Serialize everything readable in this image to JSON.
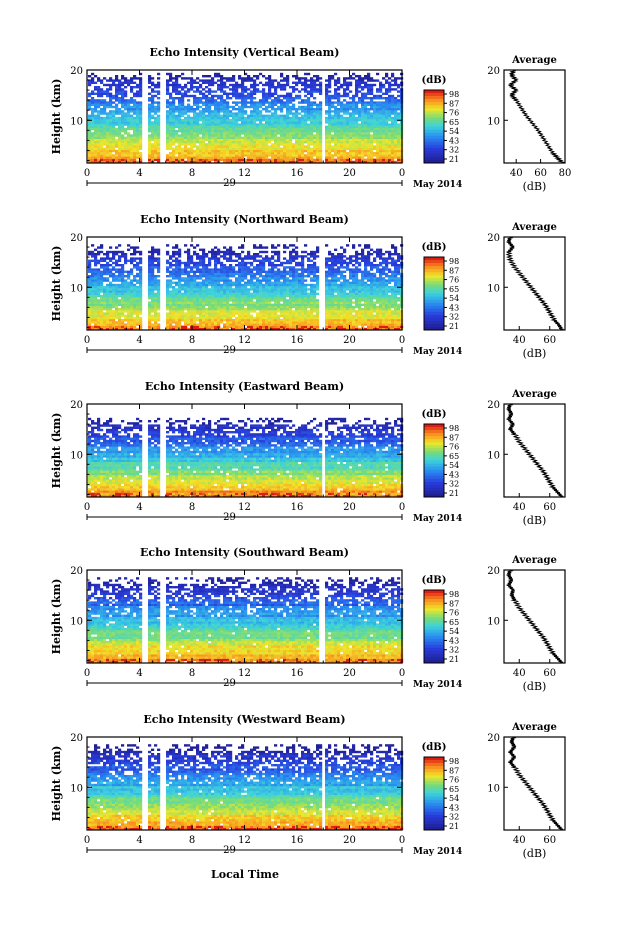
{
  "figure": {
    "date_label": "May 2014",
    "xlabel_bottom": "Local Time",
    "ylabel": "Height (km)",
    "x_ticks": [
      "0",
      "4",
      "8",
      "12",
      "16",
      "20",
      "0"
    ],
    "day_label": "29",
    "y_ticks": [
      "20",
      "10"
    ],
    "colorbar_unit": "(dB)",
    "avg_title": "Average",
    "avg_xlabel": "(dB)",
    "colors": {
      "high": "#d7191c",
      "mid": "#ffe119",
      "low": "#2020c0",
      "gap": "#ffffff"
    }
  },
  "chart_data": [
    {
      "type": "heatmap",
      "title": "Echo Intensity (Vertical Beam)",
      "x_range_hours": [
        0,
        24
      ],
      "y_range_km": [
        1.5,
        20
      ],
      "colorbar_ticks": [
        "98",
        "87",
        "76",
        "65",
        "54",
        "43",
        "32",
        "21"
      ],
      "data_gaps_hours": [
        [
          4.0,
          4.5
        ],
        [
          5.4,
          5.8
        ],
        [
          17.7,
          18.0
        ]
      ],
      "average_profile": {
        "x_ticks": [
          "40",
          "60",
          "80"
        ],
        "x_range": [
          30,
          80
        ],
        "points": [
          [
            78,
            1.5
          ],
          [
            74,
            2.5
          ],
          [
            70,
            3.5
          ],
          [
            66,
            5
          ],
          [
            62,
            6.5
          ],
          [
            58,
            8
          ],
          [
            53,
            9.5
          ],
          [
            48,
            11
          ],
          [
            44,
            12.5
          ],
          [
            40,
            14
          ],
          [
            36,
            15
          ],
          [
            40,
            16
          ],
          [
            35,
            17
          ],
          [
            40,
            18
          ],
          [
            36,
            19
          ],
          [
            38,
            20
          ]
        ]
      }
    },
    {
      "type": "heatmap",
      "title": "Echo Intensity (Northward Beam)",
      "x_range_hours": [
        0,
        24
      ],
      "y_range_km": [
        1.5,
        20
      ],
      "colorbar_ticks": [
        "98",
        "87",
        "76",
        "65",
        "54",
        "43",
        "32",
        "21"
      ],
      "data_gaps_hours": [
        [
          4.0,
          4.5
        ],
        [
          5.4,
          5.8
        ],
        [
          17.6,
          18.0
        ]
      ],
      "average_profile": {
        "x_ticks": [
          "40",
          "60"
        ],
        "x_range": [
          30,
          70
        ],
        "points": [
          [
            68,
            1.5
          ],
          [
            66,
            2.5
          ],
          [
            63,
            3.5
          ],
          [
            60,
            5
          ],
          [
            57,
            6.5
          ],
          [
            53,
            8
          ],
          [
            49,
            9.5
          ],
          [
            45,
            11
          ],
          [
            41,
            12.5
          ],
          [
            37,
            14
          ],
          [
            34,
            15.5
          ],
          [
            33,
            17
          ],
          [
            36,
            18
          ],
          [
            33,
            19
          ],
          [
            34,
            20
          ]
        ]
      }
    },
    {
      "type": "heatmap",
      "title": "Echo Intensity (Eastward Beam)",
      "x_range_hours": [
        0,
        24
      ],
      "y_range_km": [
        1.5,
        20
      ],
      "colorbar_ticks": [
        "98",
        "87",
        "76",
        "65",
        "54",
        "43",
        "32",
        "21"
      ],
      "data_gaps_hours": [
        [
          4.0,
          4.5
        ],
        [
          5.4,
          5.8
        ],
        [
          17.7,
          18.0
        ]
      ],
      "average_profile": {
        "x_ticks": [
          "40",
          "60"
        ],
        "x_range": [
          30,
          70
        ],
        "points": [
          [
            68,
            1.5
          ],
          [
            65,
            2.5
          ],
          [
            62,
            3.5
          ],
          [
            59,
            5
          ],
          [
            56,
            6.5
          ],
          [
            52,
            8
          ],
          [
            48,
            9.5
          ],
          [
            44,
            11
          ],
          [
            40,
            12.5
          ],
          [
            37,
            14
          ],
          [
            34,
            15
          ],
          [
            36,
            16
          ],
          [
            33,
            17
          ],
          [
            35,
            18
          ],
          [
            33,
            19
          ],
          [
            34,
            20
          ]
        ]
      }
    },
    {
      "type": "heatmap",
      "title": "Echo Intensity (Southward Beam)",
      "x_range_hours": [
        0,
        24
      ],
      "y_range_km": [
        1.5,
        20
      ],
      "colorbar_ticks": [
        "98",
        "87",
        "76",
        "65",
        "54",
        "43",
        "32",
        "21"
      ],
      "data_gaps_hours": [
        [
          4.0,
          4.5
        ],
        [
          5.4,
          5.8
        ],
        [
          17.6,
          18.0
        ]
      ],
      "average_profile": {
        "x_ticks": [
          "40",
          "60"
        ],
        "x_range": [
          30,
          70
        ],
        "points": [
          [
            68,
            1.5
          ],
          [
            65,
            2.5
          ],
          [
            62,
            3.5
          ],
          [
            59,
            5
          ],
          [
            56,
            6.5
          ],
          [
            52,
            8
          ],
          [
            48,
            9.5
          ],
          [
            44,
            11
          ],
          [
            40,
            12.5
          ],
          [
            37,
            14
          ],
          [
            35,
            15
          ],
          [
            36,
            16
          ],
          [
            33,
            17
          ],
          [
            35,
            18
          ],
          [
            33,
            19
          ],
          [
            34,
            20
          ]
        ]
      }
    },
    {
      "type": "heatmap",
      "title": "Echo Intensity (Westward Beam)",
      "x_range_hours": [
        0,
        24
      ],
      "y_range_km": [
        1.5,
        20
      ],
      "colorbar_ticks": [
        "98",
        "87",
        "76",
        "65",
        "54",
        "43",
        "32",
        "21"
      ],
      "data_gaps_hours": [
        [
          4.0,
          4.5
        ],
        [
          5.4,
          5.8
        ],
        [
          17.7,
          18.0
        ]
      ],
      "average_profile": {
        "x_ticks": [
          "40",
          "60"
        ],
        "x_range": [
          30,
          70
        ],
        "points": [
          [
            68,
            1.5
          ],
          [
            65,
            2.5
          ],
          [
            62,
            3.5
          ],
          [
            59,
            5
          ],
          [
            56,
            6.5
          ],
          [
            52,
            8
          ],
          [
            48,
            9.5
          ],
          [
            44,
            11
          ],
          [
            40,
            12.5
          ],
          [
            37,
            14
          ],
          [
            34,
            15
          ],
          [
            37,
            16
          ],
          [
            34,
            17
          ],
          [
            37,
            18
          ],
          [
            35,
            19
          ],
          [
            36,
            20
          ]
        ]
      }
    }
  ]
}
